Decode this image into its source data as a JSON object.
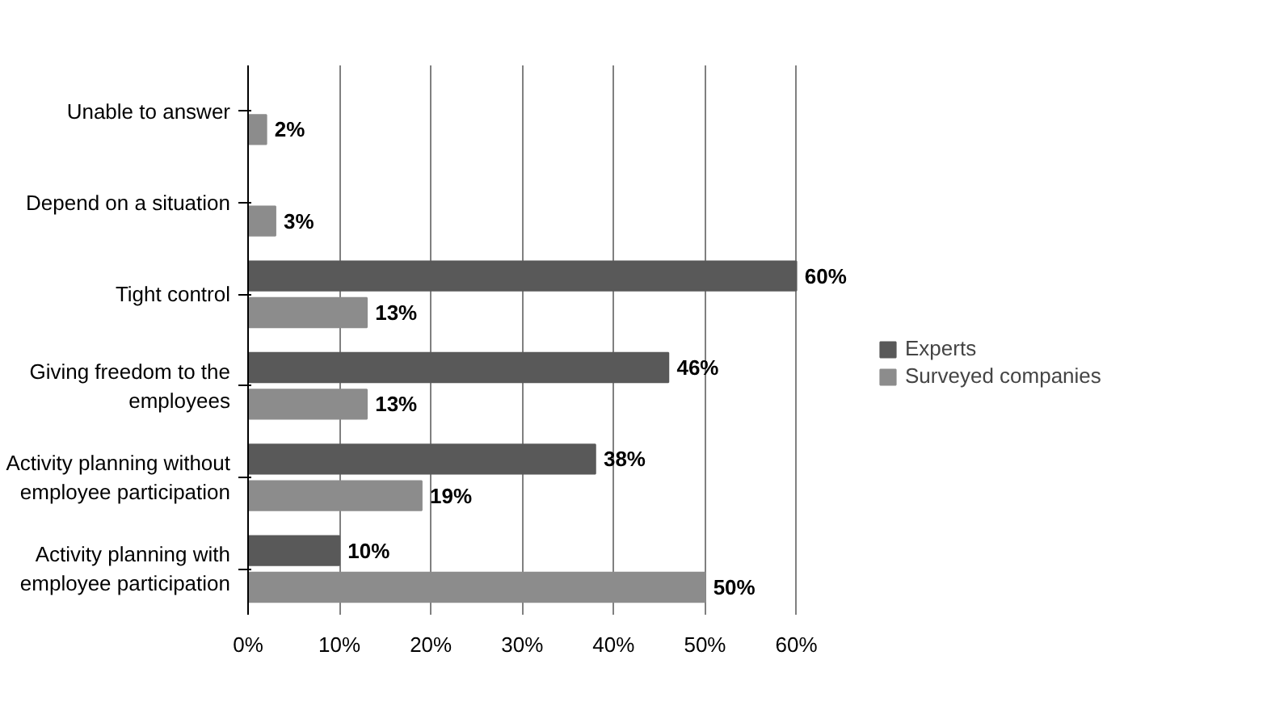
{
  "chart_data": {
    "type": "bar",
    "orientation": "horizontal",
    "categories": [
      "Unable to answer",
      "Depend on a situation",
      "Tight control",
      "Giving freedom to the employees",
      "Activity planning without employee participation",
      "Activity planning with employee participation"
    ],
    "series": [
      {
        "name": "Experts",
        "color": "#595959",
        "values": [
          null,
          null,
          60,
          46,
          38,
          10
        ],
        "value_labels": [
          null,
          null,
          "60%",
          "46%",
          "38%",
          "10%"
        ]
      },
      {
        "name": "Surveyed companies",
        "color": "#8c8c8c",
        "values": [
          2,
          3,
          13,
          13,
          19,
          50
        ],
        "value_labels": [
          "2%",
          "3%",
          "13%",
          "13%",
          "19%",
          "50%"
        ]
      }
    ],
    "xlim": [
      0,
      60
    ],
    "xticks": [
      {
        "value": 0,
        "label": "0%"
      },
      {
        "value": 10,
        "label": "10%"
      },
      {
        "value": 20,
        "label": "20%"
      },
      {
        "value": 30,
        "label": "30%"
      },
      {
        "value": 40,
        "label": "40%"
      },
      {
        "value": 50,
        "label": "50%"
      },
      {
        "value": 60,
        "label": "60%"
      }
    ],
    "grid": "x",
    "legend": "right"
  }
}
